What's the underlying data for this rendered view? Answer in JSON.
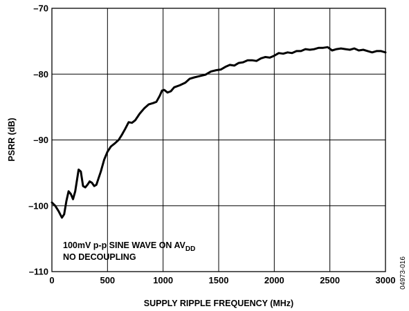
{
  "chart_data": {
    "type": "line",
    "xlabel": "SUPPLY RIPPLE FREQUENCY (MHz)",
    "ylabel": "PSRR (dB)",
    "xlim": [
      0,
      3000
    ],
    "ylim": [
      -110,
      -70
    ],
    "x_ticks": [
      0,
      500,
      1000,
      1500,
      2000,
      2500,
      3000
    ],
    "y_ticks": [
      -110,
      -100,
      -90,
      -80,
      -70
    ],
    "x_tick_labels": [
      "0",
      "500",
      "1000",
      "1500",
      "2000",
      "2500",
      "3000"
    ],
    "y_tick_labels": [
      "–110",
      "–100",
      "–90",
      "–80",
      "–70"
    ],
    "grid": true,
    "annotation": {
      "line1": "100mV p-p SINE WAVE ON AV",
      "line1_subscript": "DD",
      "line2": "NO DECOUPLING"
    },
    "figure_id": "04973-016",
    "series": [
      {
        "color": "#000000",
        "points": [
          [
            0,
            -99.5
          ],
          [
            30,
            -100.0
          ],
          [
            60,
            -100.8
          ],
          [
            90,
            -101.8
          ],
          [
            110,
            -101.3
          ],
          [
            130,
            -99.3
          ],
          [
            150,
            -97.8
          ],
          [
            170,
            -98.2
          ],
          [
            190,
            -99.0
          ],
          [
            210,
            -97.8
          ],
          [
            240,
            -94.5
          ],
          [
            260,
            -94.8
          ],
          [
            280,
            -97.0
          ],
          [
            300,
            -97.2
          ],
          [
            320,
            -96.8
          ],
          [
            340,
            -96.3
          ],
          [
            360,
            -96.5
          ],
          [
            380,
            -97.0
          ],
          [
            400,
            -96.8
          ],
          [
            420,
            -95.8
          ],
          [
            440,
            -94.8
          ],
          [
            470,
            -93.0
          ],
          [
            500,
            -91.8
          ],
          [
            530,
            -91.0
          ],
          [
            560,
            -90.6
          ],
          [
            600,
            -90.0
          ],
          [
            630,
            -89.2
          ],
          [
            660,
            -88.3
          ],
          [
            690,
            -87.3
          ],
          [
            720,
            -87.4
          ],
          [
            750,
            -87.0
          ],
          [
            790,
            -86.0
          ],
          [
            830,
            -85.2
          ],
          [
            870,
            -84.6
          ],
          [
            910,
            -84.4
          ],
          [
            940,
            -84.2
          ],
          [
            970,
            -83.3
          ],
          [
            990,
            -82.5
          ],
          [
            1010,
            -82.4
          ],
          [
            1040,
            -82.8
          ],
          [
            1070,
            -82.6
          ],
          [
            1100,
            -82.0
          ],
          [
            1150,
            -81.7
          ],
          [
            1200,
            -81.3
          ],
          [
            1240,
            -80.7
          ],
          [
            1280,
            -80.5
          ],
          [
            1330,
            -80.3
          ],
          [
            1380,
            -80.1
          ],
          [
            1430,
            -79.6
          ],
          [
            1480,
            -79.4
          ],
          [
            1520,
            -79.3
          ],
          [
            1560,
            -78.9
          ],
          [
            1600,
            -78.6
          ],
          [
            1640,
            -78.7
          ],
          [
            1680,
            -78.3
          ],
          [
            1720,
            -78.2
          ],
          [
            1760,
            -77.9
          ],
          [
            1800,
            -77.9
          ],
          [
            1840,
            -78.0
          ],
          [
            1880,
            -77.6
          ],
          [
            1920,
            -77.4
          ],
          [
            1960,
            -77.5
          ],
          [
            2000,
            -77.2
          ],
          [
            2040,
            -76.8
          ],
          [
            2080,
            -76.9
          ],
          [
            2120,
            -76.7
          ],
          [
            2160,
            -76.8
          ],
          [
            2200,
            -76.5
          ],
          [
            2240,
            -76.5
          ],
          [
            2280,
            -76.2
          ],
          [
            2320,
            -76.3
          ],
          [
            2360,
            -76.2
          ],
          [
            2400,
            -76.0
          ],
          [
            2440,
            -76.0
          ],
          [
            2480,
            -75.9
          ],
          [
            2520,
            -76.4
          ],
          [
            2560,
            -76.2
          ],
          [
            2600,
            -76.1
          ],
          [
            2640,
            -76.2
          ],
          [
            2680,
            -76.3
          ],
          [
            2720,
            -76.1
          ],
          [
            2760,
            -76.4
          ],
          [
            2800,
            -76.3
          ],
          [
            2840,
            -76.5
          ],
          [
            2880,
            -76.7
          ],
          [
            2920,
            -76.5
          ],
          [
            2960,
            -76.5
          ],
          [
            3000,
            -76.7
          ]
        ]
      }
    ]
  }
}
